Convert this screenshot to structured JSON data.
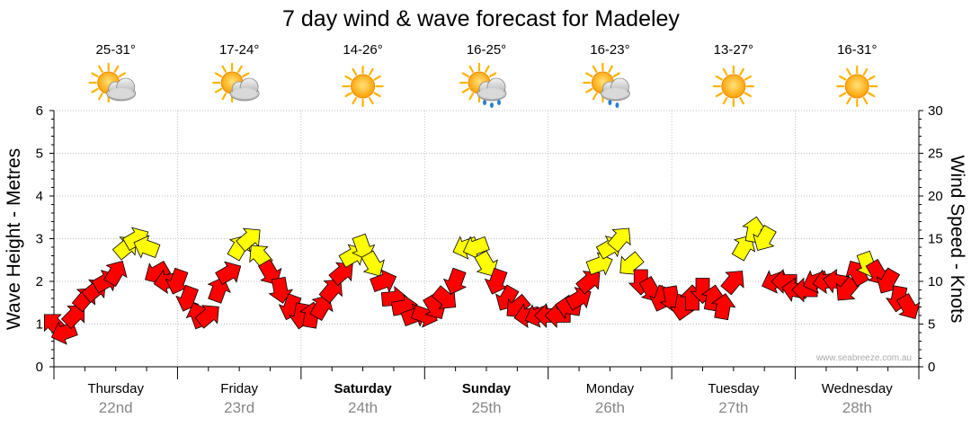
{
  "colors": {
    "red_arrow": "#ff0000",
    "yellow_arrow": "#ffff00",
    "sun": "#ffb300",
    "cloud": "#c8c8c8",
    "rain": "#2a7fd4",
    "grid": "#aaaaaa",
    "date_text": "#888888"
  },
  "chart_data": {
    "type": "scatter",
    "title": "7 day wind & wave forecast for Madeley",
    "ylabel_left": "Wave Height - Metres",
    "ylabel_right": "Wind Speed - Knots",
    "ylim_left": [
      0,
      6
    ],
    "ylim_right": [
      0,
      30
    ],
    "yticks_left": [
      "0",
      "1",
      "2",
      "3",
      "4",
      "5",
      "6"
    ],
    "yticks_right": [
      "0",
      "5",
      "10",
      "15",
      "20",
      "25",
      "30"
    ],
    "x_hours": [
      0,
      168
    ],
    "credit": "www.seabreeze.com.au",
    "days": [
      {
        "name": "Thursday",
        "date": "22nd",
        "bold": false,
        "temp": "25-31°",
        "weather": "partly-cloudy"
      },
      {
        "name": "Friday",
        "date": "23rd",
        "bold": false,
        "temp": "17-24°",
        "weather": "partly-cloudy"
      },
      {
        "name": "Saturday",
        "date": "24th",
        "bold": true,
        "temp": "14-26°",
        "weather": "sunny"
      },
      {
        "name": "Sunday",
        "date": "25th",
        "bold": true,
        "temp": "16-25°",
        "weather": "showers"
      },
      {
        "name": "Monday",
        "date": "26th",
        "bold": false,
        "temp": "16-23°",
        "weather": "light-showers"
      },
      {
        "name": "Tuesday",
        "date": "27th",
        "bold": false,
        "temp": "13-27°",
        "weather": "sunny"
      },
      {
        "name": "Wednesday",
        "date": "28th",
        "bold": false,
        "temp": "16-31°",
        "weather": "sunny"
      }
    ],
    "wind_series": {
      "name": "Wind arrows (knots, direction pointed in degrees: 0=right, 90=up)",
      "hours": [
        0,
        2,
        4,
        6,
        8,
        10,
        12,
        14,
        16,
        18,
        20,
        22,
        24,
        26,
        28,
        30,
        32,
        34,
        36,
        38,
        40,
        42,
        44,
        46,
        48,
        50,
        52,
        54,
        56,
        58,
        60,
        62,
        64,
        66,
        68,
        70,
        72,
        74,
        76,
        78,
        80,
        82,
        84,
        86,
        88,
        90,
        92,
        94,
        96,
        98,
        100,
        102,
        104,
        106,
        108,
        110,
        112,
        114,
        116,
        118,
        120,
        122,
        124,
        126,
        128,
        130,
        132,
        134,
        136,
        138,
        140,
        142,
        144,
        146,
        148,
        150,
        152,
        154,
        156,
        158,
        160,
        162,
        164,
        166
      ],
      "knots": [
        5,
        4,
        6,
        8,
        9,
        10,
        11,
        14,
        15,
        14,
        11,
        10,
        10,
        8,
        6,
        6,
        9,
        11,
        14,
        15,
        13,
        11,
        9,
        7,
        6,
        6,
        7,
        9,
        11,
        13,
        14,
        12,
        10,
        8,
        7,
        6,
        6,
        7,
        8,
        10,
        14,
        14,
        12,
        10,
        8,
        7,
        6,
        6,
        6,
        6,
        7,
        8,
        10,
        12,
        14,
        15,
        12,
        10,
        9,
        8,
        8,
        7,
        8,
        9,
        8,
        7,
        10,
        14,
        16,
        15,
        10,
        10,
        9,
        9,
        10,
        10,
        10,
        9,
        11,
        12,
        11,
        10,
        8,
        7
      ],
      "direction_deg": [
        135,
        200,
        45,
        50,
        40,
        30,
        60,
        40,
        30,
        160,
        210,
        190,
        250,
        250,
        110,
        40,
        70,
        30,
        60,
        40,
        130,
        300,
        280,
        250,
        260,
        80,
        60,
        50,
        40,
        30,
        290,
        300,
        20,
        5,
        10,
        20,
        340,
        300,
        320,
        250,
        200,
        200,
        300,
        250,
        240,
        220,
        190,
        200,
        180,
        180,
        170,
        30,
        40,
        20,
        30,
        50,
        220,
        270,
        300,
        250,
        280,
        260,
        90,
        270,
        80,
        80,
        50,
        60,
        80,
        240,
        200,
        180,
        170,
        180,
        200,
        190,
        170,
        230,
        120,
        290,
        300,
        240,
        260,
        300
      ],
      "color_threshold_knots": 12
    },
    "wave_series": {
      "name": "Wave Height - Metres",
      "values": []
    }
  }
}
